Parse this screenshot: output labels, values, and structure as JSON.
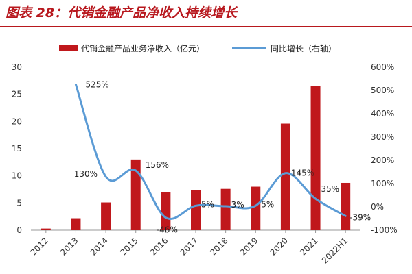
{
  "figure": {
    "title": "图表 28：代销金融产品净收入持续增长"
  },
  "colors": {
    "accent": "#b8181e",
    "bar": "#c0181c",
    "line": "#5b9bd5",
    "axis": "#999999"
  },
  "chart_data": {
    "type": "bar",
    "title": "图表 28：代销金融产品净收入持续增长",
    "categories": [
      "2012",
      "2013",
      "2014",
      "2015",
      "2016",
      "2017",
      "2018",
      "2019",
      "2020",
      "2021",
      "2022H1"
    ],
    "series": [
      {
        "name": "代销金融产品业务净收入（亿元）",
        "type": "bar",
        "axis": "left",
        "values": [
          0.3,
          2.2,
          5.1,
          13.0,
          7.0,
          7.4,
          7.6,
          8.0,
          19.6,
          26.5,
          8.7
        ]
      },
      {
        "name": "同比增长（右轴）",
        "type": "line",
        "axis": "right",
        "values": [
          null,
          525,
          130,
          156,
          -46,
          5,
          3,
          5,
          145,
          35,
          -39
        ],
        "labels": [
          "",
          "525%",
          "130%",
          "156%",
          "-46%",
          "5%",
          "3%",
          "5%",
          "145%",
          "35%",
          "-39%"
        ]
      }
    ],
    "ylim_left": [
      0,
      30
    ],
    "yticks_left": [
      "0",
      "5",
      "10",
      "15",
      "20",
      "25",
      "30"
    ],
    "ylim_right": [
      -100,
      600
    ],
    "yticks_right": [
      "-100%",
      "0%",
      "100%",
      "200%",
      "300%",
      "400%",
      "500%",
      "600%"
    ],
    "legend": "top",
    "grid": false
  }
}
